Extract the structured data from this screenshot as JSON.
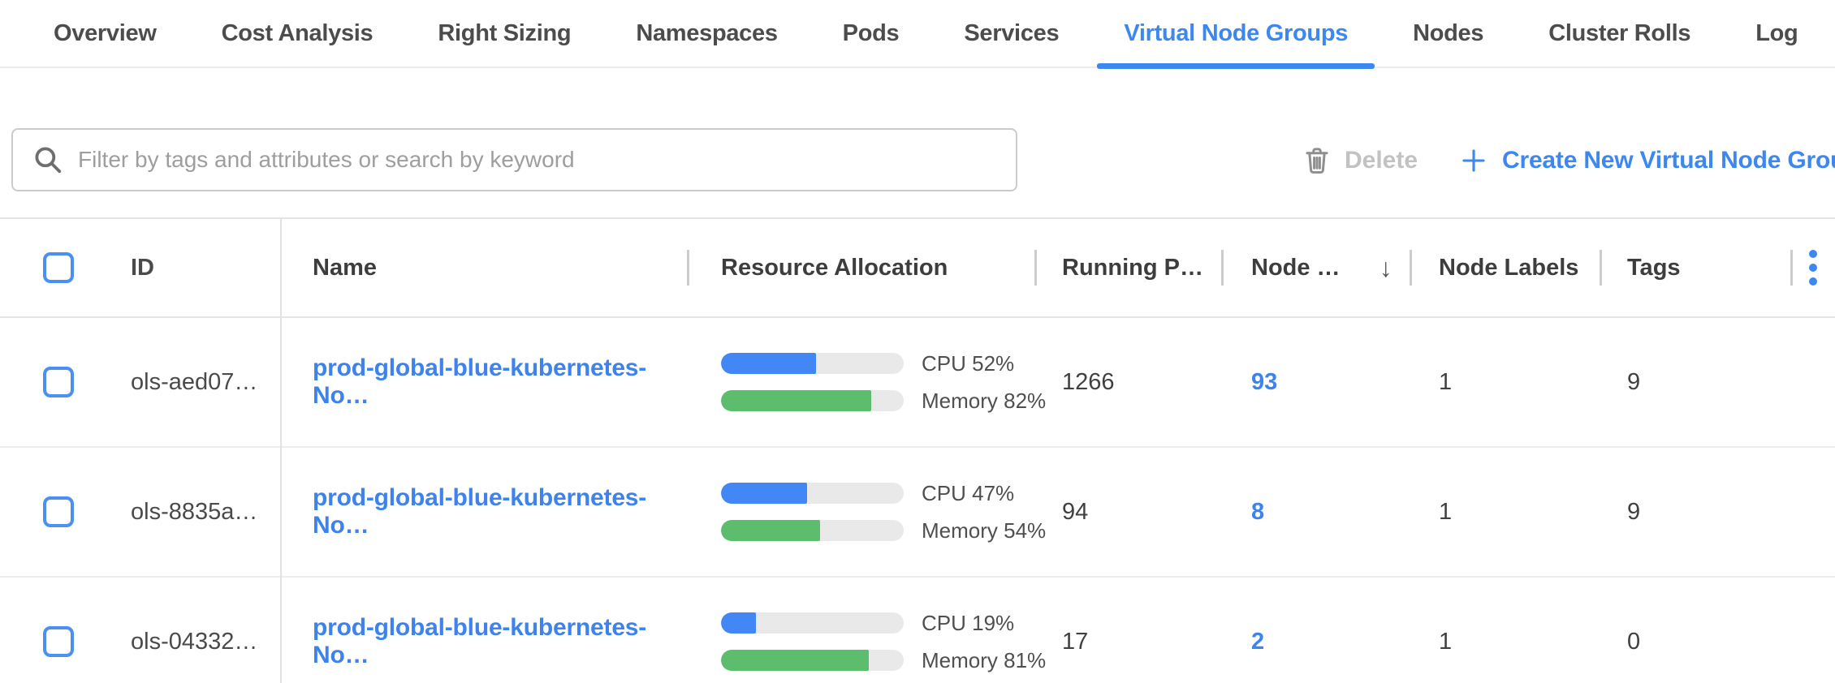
{
  "tabs": [
    {
      "label": "Overview",
      "active": false
    },
    {
      "label": "Cost Analysis",
      "active": false
    },
    {
      "label": "Right Sizing",
      "active": false
    },
    {
      "label": "Namespaces",
      "active": false
    },
    {
      "label": "Pods",
      "active": false
    },
    {
      "label": "Services",
      "active": false
    },
    {
      "label": "Virtual Node Groups",
      "active": true
    },
    {
      "label": "Nodes",
      "active": false
    },
    {
      "label": "Cluster Rolls",
      "active": false
    },
    {
      "label": "Log",
      "active": false
    }
  ],
  "toolbar": {
    "search_placeholder": "Filter by tags and attributes or search by keyword",
    "delete_label": "Delete",
    "create_label": "Create New Virtual Node Group"
  },
  "table": {
    "headers": {
      "id": "ID",
      "name": "Name",
      "resource_allocation": "Resource Allocation",
      "running_pods": "Running P…",
      "nodes": "Node …",
      "sort_icon": "↓",
      "node_labels": "Node Labels",
      "tags": "Tags"
    },
    "rows": [
      {
        "id": "ols-aed07…",
        "name": "prod-global-blue-kubernetes-No…",
        "cpu_pct": 52,
        "cpu_label": "CPU 52%",
        "memory_pct": 82,
        "memory_label": "Memory 82%",
        "running_pods": "1266",
        "nodes": "93",
        "node_labels": "1",
        "tags": "9"
      },
      {
        "id": "ols-8835a…",
        "name": "prod-global-blue-kubernetes-No…",
        "cpu_pct": 47,
        "cpu_label": "CPU 47%",
        "memory_pct": 54,
        "memory_label": "Memory 54%",
        "running_pods": "94",
        "nodes": "8",
        "node_labels": "1",
        "tags": "9"
      },
      {
        "id": "ols-04332…",
        "name": "prod-global-blue-kubernetes-No…",
        "cpu_pct": 19,
        "cpu_label": "CPU 19%",
        "memory_pct": 81,
        "memory_label": "Memory 81%",
        "running_pods": "17",
        "nodes": "2",
        "node_labels": "1",
        "tags": "0"
      }
    ]
  },
  "colors": {
    "accent": "#3d87f0",
    "link": "#3e82ec",
    "checkbox": "#4a90f0",
    "bar_blue": "#4287f5",
    "bar_green": "#5cbd6c",
    "bar_track": "#e9e9e9",
    "disabled": "#c2c2c2",
    "icon_gray": "#8f8f8f"
  }
}
